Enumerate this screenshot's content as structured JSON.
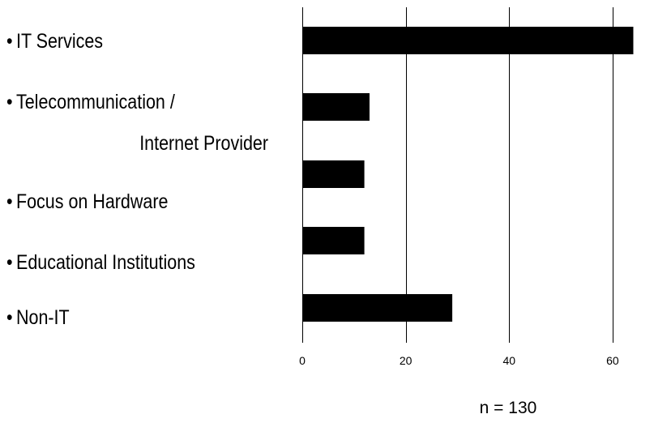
{
  "chart_data": {
    "type": "bar",
    "orientation": "horizontal",
    "categories": [
      "IT Services",
      "Telecommunication / Internet Provider",
      "Focus on Hardware",
      "Educational Institutions",
      "Non-IT"
    ],
    "category_label_lines": [
      [
        "IT Services"
      ],
      [
        "Telecommunication /",
        "Internet Provider"
      ],
      [
        "Focus on Hardware"
      ],
      [
        "Educational Institutions"
      ],
      [
        "Non-IT"
      ]
    ],
    "bullet": "•",
    "values": [
      64,
      13,
      12,
      12,
      29
    ],
    "bar_color": "#000000",
    "xlim": [
      0,
      68
    ],
    "xticks": [
      0,
      20,
      40,
      60
    ],
    "grid": "vertical lines at major ticks",
    "note": "n = 130"
  }
}
